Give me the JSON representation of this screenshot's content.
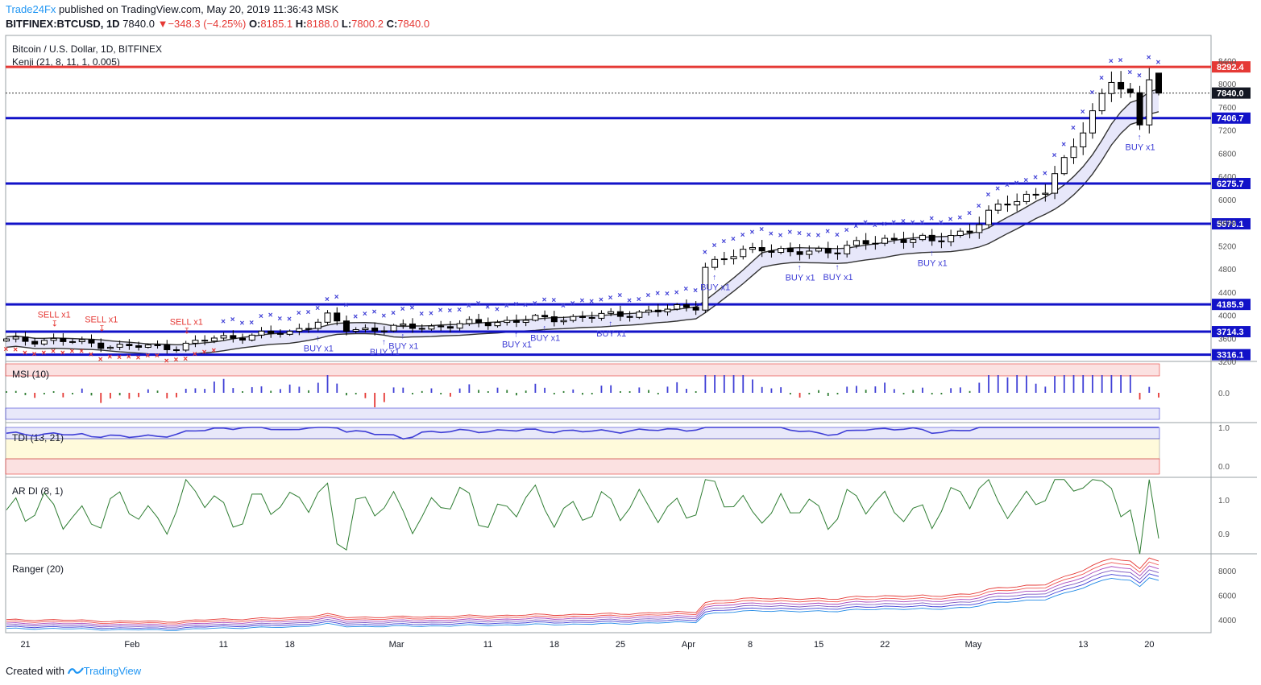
{
  "header": {
    "publisher": "Trade24Fx",
    "published_text": "published on TradingView.com, May 20, 2019 11:36:43 MSK",
    "symbol": "BITFINEX:BTCUSD, 1D",
    "last": "7840.0",
    "change": "−348.3 (−4.25%)",
    "open_label": "O:",
    "open": "8185.1",
    "high_label": "H:",
    "high": "8188.0",
    "low_label": "L:",
    "low": "7800.2",
    "close_label": "C:",
    "close": "7840.0"
  },
  "footer": {
    "created_with": "Created with",
    "brand": "TradingView"
  },
  "chart_data": [
    {
      "type": "candlestick",
      "title": "Bitcoin / U.S. Dollar, 1D, BITFINEX",
      "indicator_label": "Kenji (21, 8, 11, 1, 0.005)",
      "ylim": [
        3200,
        8600
      ],
      "y_ticks": [
        3200,
        3600,
        4000,
        4400,
        4800,
        5200,
        5600,
        6000,
        6400,
        6800,
        7200,
        7600,
        8000,
        8400
      ],
      "x_ticks": [
        {
          "label": "21",
          "index": 2
        },
        {
          "label": "Feb",
          "index": 13
        },
        {
          "label": "11",
          "index": 23
        },
        {
          "label": "18",
          "index": 30
        },
        {
          "label": "Mar",
          "index": 41
        },
        {
          "label": "11",
          "index": 51
        },
        {
          "label": "18",
          "index": 58
        },
        {
          "label": "25",
          "index": 65
        },
        {
          "label": "Apr",
          "index": 72
        },
        {
          "label": "8",
          "index": 79
        },
        {
          "label": "15",
          "index": 86
        },
        {
          "label": "22",
          "index": 93
        },
        {
          "label": "May",
          "index": 102
        },
        {
          "label": "13",
          "index": 114
        },
        {
          "label": "20",
          "index": 121
        }
      ],
      "horizontal_levels": [
        {
          "value": 8292.4,
          "label": "8292.4",
          "color": "#e53935"
        },
        {
          "value": 7406.7,
          "label": "7406.7",
          "color": "#1212c8"
        },
        {
          "value": 6275.7,
          "label": "6275.7",
          "color": "#1212c8"
        },
        {
          "value": 5579.1,
          "label": "5579.1",
          "color": "#1212c8"
        },
        {
          "value": 4185.9,
          "label": "4185.9",
          "color": "#1212c8"
        },
        {
          "value": 3714.3,
          "label": "3714.3",
          "color": "#1212c8"
        },
        {
          "value": 3316.1,
          "label": "3316.1",
          "color": "#1212c8"
        }
      ],
      "last_price": {
        "value": 7840.0,
        "label": "7840.0"
      },
      "signals": [
        {
          "text": "SELL x1",
          "index": 5,
          "type": "sell"
        },
        {
          "text": "SELL x1",
          "index": 10,
          "type": "sell"
        },
        {
          "text": "SELL x1",
          "index": 19,
          "type": "sell"
        },
        {
          "text": "BUY x1",
          "index": 33,
          "type": "buy"
        },
        {
          "text": "BUY x1",
          "index": 40,
          "type": "buy"
        },
        {
          "text": "BUY x1",
          "index": 42,
          "type": "buy"
        },
        {
          "text": "BUY x1",
          "index": 54,
          "type": "buy"
        },
        {
          "text": "BUY x1",
          "index": 57,
          "type": "buy"
        },
        {
          "text": "BUY x1",
          "index": 64,
          "type": "buy"
        },
        {
          "text": "BUY x1",
          "index": 75,
          "type": "buy"
        },
        {
          "text": "BUY x1",
          "index": 84,
          "type": "buy"
        },
        {
          "text": "BUY x1",
          "index": 88,
          "type": "buy"
        },
        {
          "text": "BUY x1",
          "index": 98,
          "type": "buy"
        },
        {
          "text": "BUY x1",
          "index": 120,
          "type": "buy"
        }
      ],
      "series_close_keypoints": [
        [
          0,
          3560
        ],
        [
          5,
          3570
        ],
        [
          12,
          3460
        ],
        [
          18,
          3450
        ],
        [
          22,
          3600
        ],
        [
          30,
          3700
        ],
        [
          34,
          3970
        ],
        [
          36,
          3750
        ],
        [
          45,
          3800
        ],
        [
          55,
          3920
        ],
        [
          62,
          3970
        ],
        [
          70,
          4090
        ],
        [
          73,
          4170
        ],
        [
          74,
          4850
        ],
        [
          80,
          5200
        ],
        [
          83,
          5050
        ],
        [
          88,
          5150
        ],
        [
          95,
          5350
        ],
        [
          98,
          5250
        ],
        [
          102,
          5500
        ],
        [
          106,
          5950
        ],
        [
          110,
          6180
        ],
        [
          112,
          6600
        ],
        [
          114,
          7250
        ],
        [
          117,
          8100
        ],
        [
          119,
          7700
        ],
        [
          120,
          7250
        ],
        [
          121,
          8200
        ],
        [
          122,
          7840
        ]
      ]
    },
    {
      "type": "bar",
      "title": "MSI (10)",
      "y_ticks": [
        0.0
      ]
    },
    {
      "type": "line",
      "title": "TDI (13, 21)",
      "y_ticks": [
        1.0,
        0.0
      ]
    },
    {
      "type": "line",
      "title": "AR DI (8, 1)",
      "y_ticks": [
        1.0,
        0.9
      ]
    },
    {
      "type": "line",
      "title": "Ranger (20)",
      "y_ticks": [
        8000,
        6000,
        4000
      ]
    }
  ]
}
